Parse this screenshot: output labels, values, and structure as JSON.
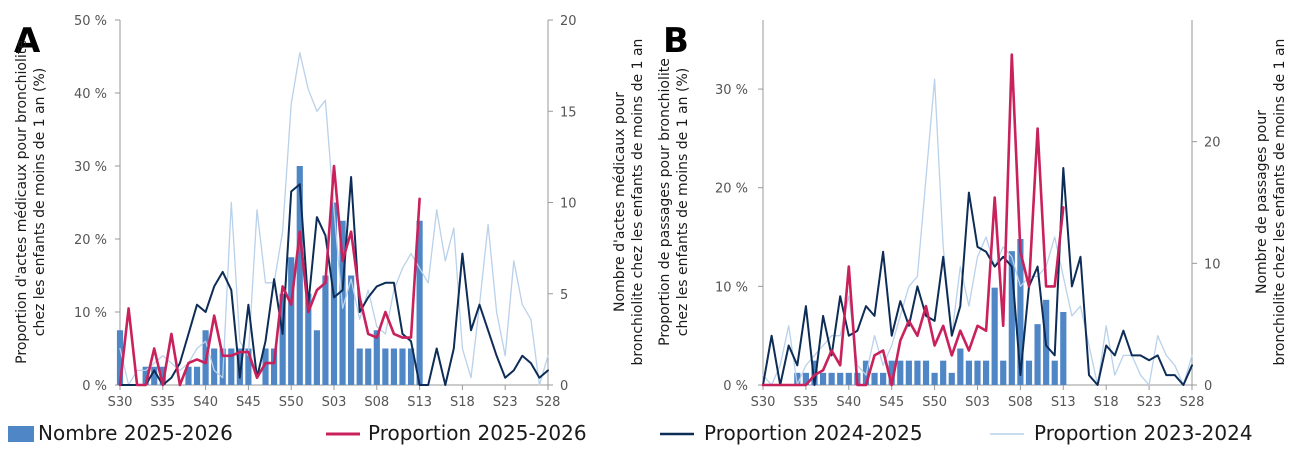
{
  "colors": {
    "bar": "#4f86c6",
    "p2526": "#c8215c",
    "p2425": "#0d2d57",
    "p2324": "#b9d1ea",
    "axis": "#999999"
  },
  "legend": [
    {
      "key": "nombre_2025_2026",
      "label": "Nombre 2025-2026",
      "kind": "bar"
    },
    {
      "key": "prop_2025_2026",
      "label": "Proportion 2025-2026",
      "kind": "line"
    },
    {
      "key": "prop_2024_2025",
      "label": "Proportion 2024-2025",
      "kind": "line"
    },
    {
      "key": "prop_2023_2024",
      "label": "Proportion 2023-2024",
      "kind": "line"
    }
  ],
  "chart_data": [
    {
      "panel": "A",
      "type": "bar+line",
      "ylabel_left_lines": [
        "Proportion d'actes médicaux pour bronchiolite",
        "chez les enfants de moins de 1 an (%)"
      ],
      "ylabel_right_lines": [
        "Nombre d'actes médicaux pour",
        "bronchiolite chez les enfants de moins de 1 an"
      ],
      "ylim_left": [
        0,
        50
      ],
      "yticks_left": [
        0,
        10,
        20,
        30,
        40,
        50
      ],
      "ytick_labels_left": [
        "0 %",
        "10 %",
        "20 %",
        "30 %",
        "40 %",
        "50 %"
      ],
      "ylim_right": [
        0,
        20
      ],
      "yticks_right": [
        0,
        5,
        10,
        15,
        20
      ],
      "ytick_labels_right": [
        "0",
        "5",
        "10",
        "15",
        "20"
      ],
      "x_tick_labels": [
        "S30",
        "S35",
        "S40",
        "S45",
        "S50",
        "S03",
        "S08",
        "S13",
        "S18",
        "S23",
        "S28"
      ],
      "x_tick_index": [
        0,
        5,
        10,
        15,
        20,
        25,
        30,
        35,
        40,
        45,
        50
      ],
      "n_weeks": 51,
      "bars_nombre_2025_2026": [
        3,
        0,
        0,
        1,
        1,
        1,
        0,
        0,
        1,
        1,
        3,
        2,
        2,
        2,
        2,
        2,
        0,
        2,
        2,
        5,
        7,
        12,
        5,
        3,
        6,
        10,
        9,
        6,
        2,
        2,
        3,
        2,
        2,
        2,
        2,
        9
      ],
      "prop_2025_2026": [
        0,
        10.5,
        0,
        0,
        5,
        0,
        7,
        0,
        3,
        3.5,
        3,
        9.5,
        4,
        4,
        4.5,
        4.5,
        1,
        3,
        3,
        13.5,
        11,
        21,
        10,
        13,
        14,
        30,
        17,
        21,
        12,
        7,
        6.5,
        10,
        7,
        6.5,
        6.5,
        25.5
      ],
      "prop_2024_2025": [
        0,
        0,
        0,
        0,
        2,
        0,
        1,
        3,
        7,
        11,
        10,
        13.5,
        15.5,
        13,
        1,
        11,
        1,
        6,
        14.5,
        7,
        26.5,
        27.5,
        11,
        23,
        20.5,
        12,
        13,
        28.5,
        10,
        12,
        13.5,
        14,
        14,
        7,
        6,
        0,
        0,
        5,
        0,
        5,
        18,
        7.5,
        11,
        7.5,
        4,
        1,
        2,
        4,
        3,
        1,
        2
      ],
      "prop_2023_2024": [
        5,
        0,
        2,
        2,
        3,
        4,
        3,
        2,
        3,
        5,
        6,
        2,
        1,
        25,
        6,
        4,
        24,
        14,
        14,
        21,
        38.5,
        45.5,
        40.5,
        37.5,
        39,
        24,
        10.5,
        14.5,
        9,
        13,
        8,
        7,
        13,
        16,
        18,
        16,
        14,
        24,
        17,
        21.5,
        5,
        1,
        11,
        22,
        10,
        4,
        17,
        11,
        9,
        0,
        4
      ]
    },
    {
      "panel": "B",
      "type": "bar+line",
      "ylabel_left_lines": [
        "Proportion de passages pour bronchiolite",
        "chez les enfants de moins de 1 an (%)"
      ],
      "ylabel_right_lines": [
        "Nombre de passages pour",
        "bronchiolite chez les enfants de moins de 1 an"
      ],
      "ylim_left": [
        0,
        37
      ],
      "yticks_left": [
        0,
        10,
        20,
        30
      ],
      "ytick_labels_left": [
        "0 %",
        "10 %",
        "20 %",
        "30 %"
      ],
      "ylim_right": [
        0,
        30
      ],
      "yticks_right": [
        0,
        10,
        20
      ],
      "ytick_labels_right": [
        "0",
        "10",
        "20"
      ],
      "x_tick_labels": [
        "S30",
        "S35",
        "S40",
        "S45",
        "S50",
        "S03",
        "S08",
        "S13",
        "S18",
        "S23",
        "S28"
      ],
      "x_tick_index": [
        0,
        5,
        10,
        15,
        20,
        25,
        30,
        35,
        40,
        45,
        50
      ],
      "n_weeks": 51,
      "bars_nombre_2025_2026": [
        0,
        0,
        0,
        0,
        1,
        1,
        2,
        1,
        1,
        1,
        1,
        1,
        2,
        1,
        1,
        2,
        2,
        2,
        2,
        2,
        1,
        2,
        1,
        3,
        2,
        2,
        2,
        8,
        2,
        11,
        12,
        2,
        5,
        7,
        2,
        6
      ],
      "prop_2025_2026": [
        0,
        0,
        0,
        0,
        0,
        0,
        1,
        1.5,
        3.5,
        2,
        12,
        0,
        0,
        3,
        3.5,
        0,
        4.5,
        6.5,
        5,
        8,
        4,
        6,
        3,
        5.5,
        3.5,
        6,
        5.5,
        19,
        6,
        33.5,
        13.5,
        10,
        26,
        10,
        10,
        18
      ],
      "prop_2024_2025": [
        0,
        5,
        0,
        4,
        2,
        8,
        0,
        7,
        3,
        9,
        5,
        5.5,
        8,
        7,
        13.5,
        5,
        8.5,
        6,
        10,
        7,
        6.5,
        13,
        5,
        8,
        19.5,
        14,
        13.5,
        12,
        13,
        12,
        1,
        10,
        12,
        4,
        3,
        22,
        10,
        13,
        1,
        0,
        4,
        3,
        5.5,
        3,
        3,
        2.5,
        3,
        1,
        1,
        0,
        2
      ],
      "prop_2023_2024": [
        1,
        0,
        2,
        6,
        0,
        2,
        3,
        4,
        5,
        5,
        9,
        2,
        1,
        5,
        2,
        4,
        7,
        10,
        11,
        21,
        31,
        14,
        5,
        12,
        8,
        13,
        15,
        12,
        14,
        13,
        10,
        11,
        11,
        12,
        15,
        11,
        7,
        8,
        4,
        0,
        6,
        1,
        3,
        3,
        1,
        0,
        5,
        3,
        2,
        0,
        3
      ]
    }
  ]
}
